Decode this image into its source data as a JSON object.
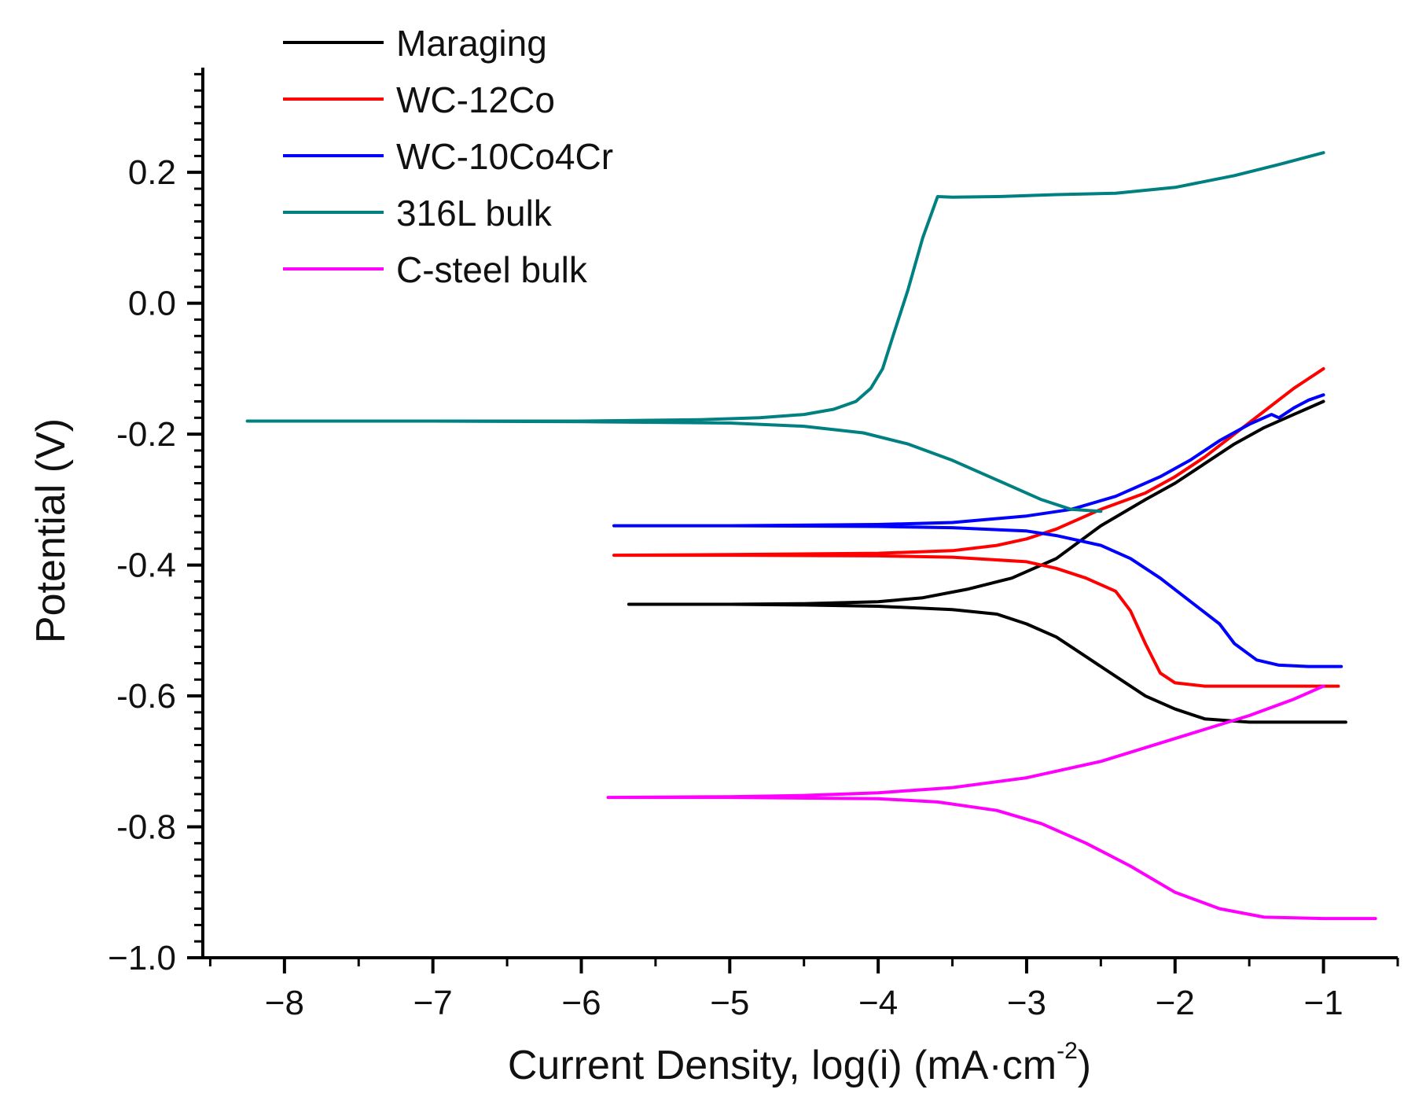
{
  "chart_data": {
    "type": "line",
    "title": "",
    "xlabel": "Current Density, log(i) (mA·cm",
    "xlabel_sup": "-2",
    "xlabel_close": ")",
    "ylabel": "Potential (V)",
    "xlim": [
      -8.55,
      -0.5
    ],
    "ylim": [
      -1.0,
      0.36
    ],
    "x_ticks": [
      -8,
      -7,
      -6,
      -5,
      -4,
      -3,
      -2,
      -1
    ],
    "x_tick_labels": [
      "−8",
      "−7",
      "−6",
      "−5",
      "−4",
      "−3",
      "−2",
      "−1"
    ],
    "y_ticks": [
      -1.0,
      -0.8,
      -0.6,
      -0.4,
      -0.2,
      0.0,
      0.2
    ],
    "y_tick_labels": [
      "−1.0",
      "-0.8",
      "-0.6",
      "-0.4",
      "-0.2",
      "0.0",
      "0.2"
    ],
    "grid": false,
    "legend_position": "top-left",
    "series": [
      {
        "name": "Maraging",
        "color": "#000000",
        "points": [
          [
            -0.85,
            -0.64
          ],
          [
            -1.2,
            -0.64
          ],
          [
            -1.5,
            -0.64
          ],
          [
            -1.8,
            -0.635
          ],
          [
            -2.0,
            -0.62
          ],
          [
            -2.2,
            -0.6
          ],
          [
            -2.4,
            -0.57
          ],
          [
            -2.6,
            -0.54
          ],
          [
            -2.8,
            -0.51
          ],
          [
            -3.0,
            -0.49
          ],
          [
            -3.2,
            -0.475
          ],
          [
            -3.5,
            -0.468
          ],
          [
            -4.0,
            -0.463
          ],
          [
            -4.5,
            -0.461
          ],
          [
            -5.0,
            -0.46
          ],
          [
            -5.68,
            -0.46
          ],
          [
            -5.0,
            -0.46
          ],
          [
            -4.5,
            -0.459
          ],
          [
            -4.0,
            -0.456
          ],
          [
            -3.7,
            -0.45
          ],
          [
            -3.4,
            -0.437
          ],
          [
            -3.1,
            -0.42
          ],
          [
            -2.8,
            -0.39
          ],
          [
            -2.5,
            -0.34
          ],
          [
            -2.2,
            -0.3
          ],
          [
            -2.0,
            -0.275
          ],
          [
            -1.8,
            -0.245
          ],
          [
            -1.6,
            -0.215
          ],
          [
            -1.4,
            -0.19
          ],
          [
            -1.2,
            -0.17
          ],
          [
            -1.0,
            -0.15
          ]
        ]
      },
      {
        "name": "WC-12Co",
        "color": "#ff0000",
        "points": [
          [
            -0.9,
            -0.585
          ],
          [
            -1.2,
            -0.585
          ],
          [
            -1.5,
            -0.585
          ],
          [
            -1.8,
            -0.585
          ],
          [
            -2.0,
            -0.58
          ],
          [
            -2.1,
            -0.565
          ],
          [
            -2.2,
            -0.52
          ],
          [
            -2.3,
            -0.47
          ],
          [
            -2.4,
            -0.44
          ],
          [
            -2.6,
            -0.42
          ],
          [
            -2.8,
            -0.405
          ],
          [
            -3.0,
            -0.395
          ],
          [
            -3.5,
            -0.388
          ],
          [
            -4.0,
            -0.386
          ],
          [
            -5.0,
            -0.385
          ],
          [
            -5.78,
            -0.385
          ],
          [
            -5.0,
            -0.384
          ],
          [
            -4.0,
            -0.382
          ],
          [
            -3.5,
            -0.378
          ],
          [
            -3.2,
            -0.37
          ],
          [
            -3.0,
            -0.36
          ],
          [
            -2.8,
            -0.345
          ],
          [
            -2.5,
            -0.315
          ],
          [
            -2.2,
            -0.29
          ],
          [
            -2.0,
            -0.265
          ],
          [
            -1.8,
            -0.235
          ],
          [
            -1.6,
            -0.2
          ],
          [
            -1.4,
            -0.165
          ],
          [
            -1.2,
            -0.13
          ],
          [
            -1.0,
            -0.1
          ]
        ]
      },
      {
        "name": "WC-10Co4Cr",
        "color": "#0000ff",
        "points": [
          [
            -0.88,
            -0.555
          ],
          [
            -1.1,
            -0.555
          ],
          [
            -1.3,
            -0.553
          ],
          [
            -1.45,
            -0.545
          ],
          [
            -1.6,
            -0.52
          ],
          [
            -1.7,
            -0.49
          ],
          [
            -1.9,
            -0.455
          ],
          [
            -2.1,
            -0.42
          ],
          [
            -2.3,
            -0.39
          ],
          [
            -2.5,
            -0.37
          ],
          [
            -2.8,
            -0.355
          ],
          [
            -3.0,
            -0.348
          ],
          [
            -3.5,
            -0.343
          ],
          [
            -4.0,
            -0.341
          ],
          [
            -5.0,
            -0.34
          ],
          [
            -5.78,
            -0.34
          ],
          [
            -5.0,
            -0.34
          ],
          [
            -4.0,
            -0.338
          ],
          [
            -3.5,
            -0.335
          ],
          [
            -3.0,
            -0.325
          ],
          [
            -2.7,
            -0.315
          ],
          [
            -2.4,
            -0.295
          ],
          [
            -2.1,
            -0.265
          ],
          [
            -1.9,
            -0.24
          ],
          [
            -1.7,
            -0.21
          ],
          [
            -1.5,
            -0.185
          ],
          [
            -1.35,
            -0.17
          ],
          [
            -1.3,
            -0.175
          ],
          [
            -1.2,
            -0.16
          ],
          [
            -1.1,
            -0.148
          ],
          [
            -1.0,
            -0.14
          ]
        ]
      },
      {
        "name": "316L bulk",
        "color": "#008080",
        "points": [
          [
            -2.5,
            -0.318
          ],
          [
            -2.7,
            -0.315
          ],
          [
            -2.9,
            -0.3
          ],
          [
            -3.2,
            -0.27
          ],
          [
            -3.5,
            -0.24
          ],
          [
            -3.8,
            -0.215
          ],
          [
            -4.1,
            -0.198
          ],
          [
            -4.5,
            -0.188
          ],
          [
            -5.0,
            -0.183
          ],
          [
            -6.0,
            -0.181
          ],
          [
            -7.0,
            -0.18
          ],
          [
            -8.25,
            -0.18
          ],
          [
            -7.0,
            -0.18
          ],
          [
            -6.0,
            -0.18
          ],
          [
            -5.2,
            -0.178
          ],
          [
            -4.8,
            -0.175
          ],
          [
            -4.5,
            -0.17
          ],
          [
            -4.3,
            -0.162
          ],
          [
            -4.15,
            -0.15
          ],
          [
            -4.05,
            -0.13
          ],
          [
            -3.97,
            -0.1
          ],
          [
            -3.9,
            -0.05
          ],
          [
            -3.8,
            0.02
          ],
          [
            -3.7,
            0.1
          ],
          [
            -3.6,
            0.163
          ],
          [
            -3.5,
            0.162
          ],
          [
            -3.2,
            0.163
          ],
          [
            -2.8,
            0.166
          ],
          [
            -2.4,
            0.168
          ],
          [
            -2.0,
            0.177
          ],
          [
            -1.6,
            0.195
          ],
          [
            -1.3,
            0.212
          ],
          [
            -1.0,
            0.23
          ]
        ]
      },
      {
        "name": "C-steel bulk",
        "color": "#ff00ff",
        "points": [
          [
            -0.65,
            -0.94
          ],
          [
            -1.0,
            -0.94
          ],
          [
            -1.4,
            -0.938
          ],
          [
            -1.7,
            -0.925
          ],
          [
            -2.0,
            -0.9
          ],
          [
            -2.3,
            -0.86
          ],
          [
            -2.6,
            -0.825
          ],
          [
            -2.9,
            -0.795
          ],
          [
            -3.2,
            -0.775
          ],
          [
            -3.6,
            -0.762
          ],
          [
            -4.0,
            -0.757
          ],
          [
            -5.0,
            -0.755
          ],
          [
            -5.82,
            -0.755
          ],
          [
            -5.0,
            -0.754
          ],
          [
            -4.5,
            -0.752
          ],
          [
            -4.0,
            -0.748
          ],
          [
            -3.5,
            -0.74
          ],
          [
            -3.0,
            -0.725
          ],
          [
            -2.5,
            -0.7
          ],
          [
            -2.0,
            -0.665
          ],
          [
            -1.5,
            -0.63
          ],
          [
            -1.2,
            -0.605
          ],
          [
            -1.0,
            -0.585
          ]
        ]
      }
    ]
  }
}
